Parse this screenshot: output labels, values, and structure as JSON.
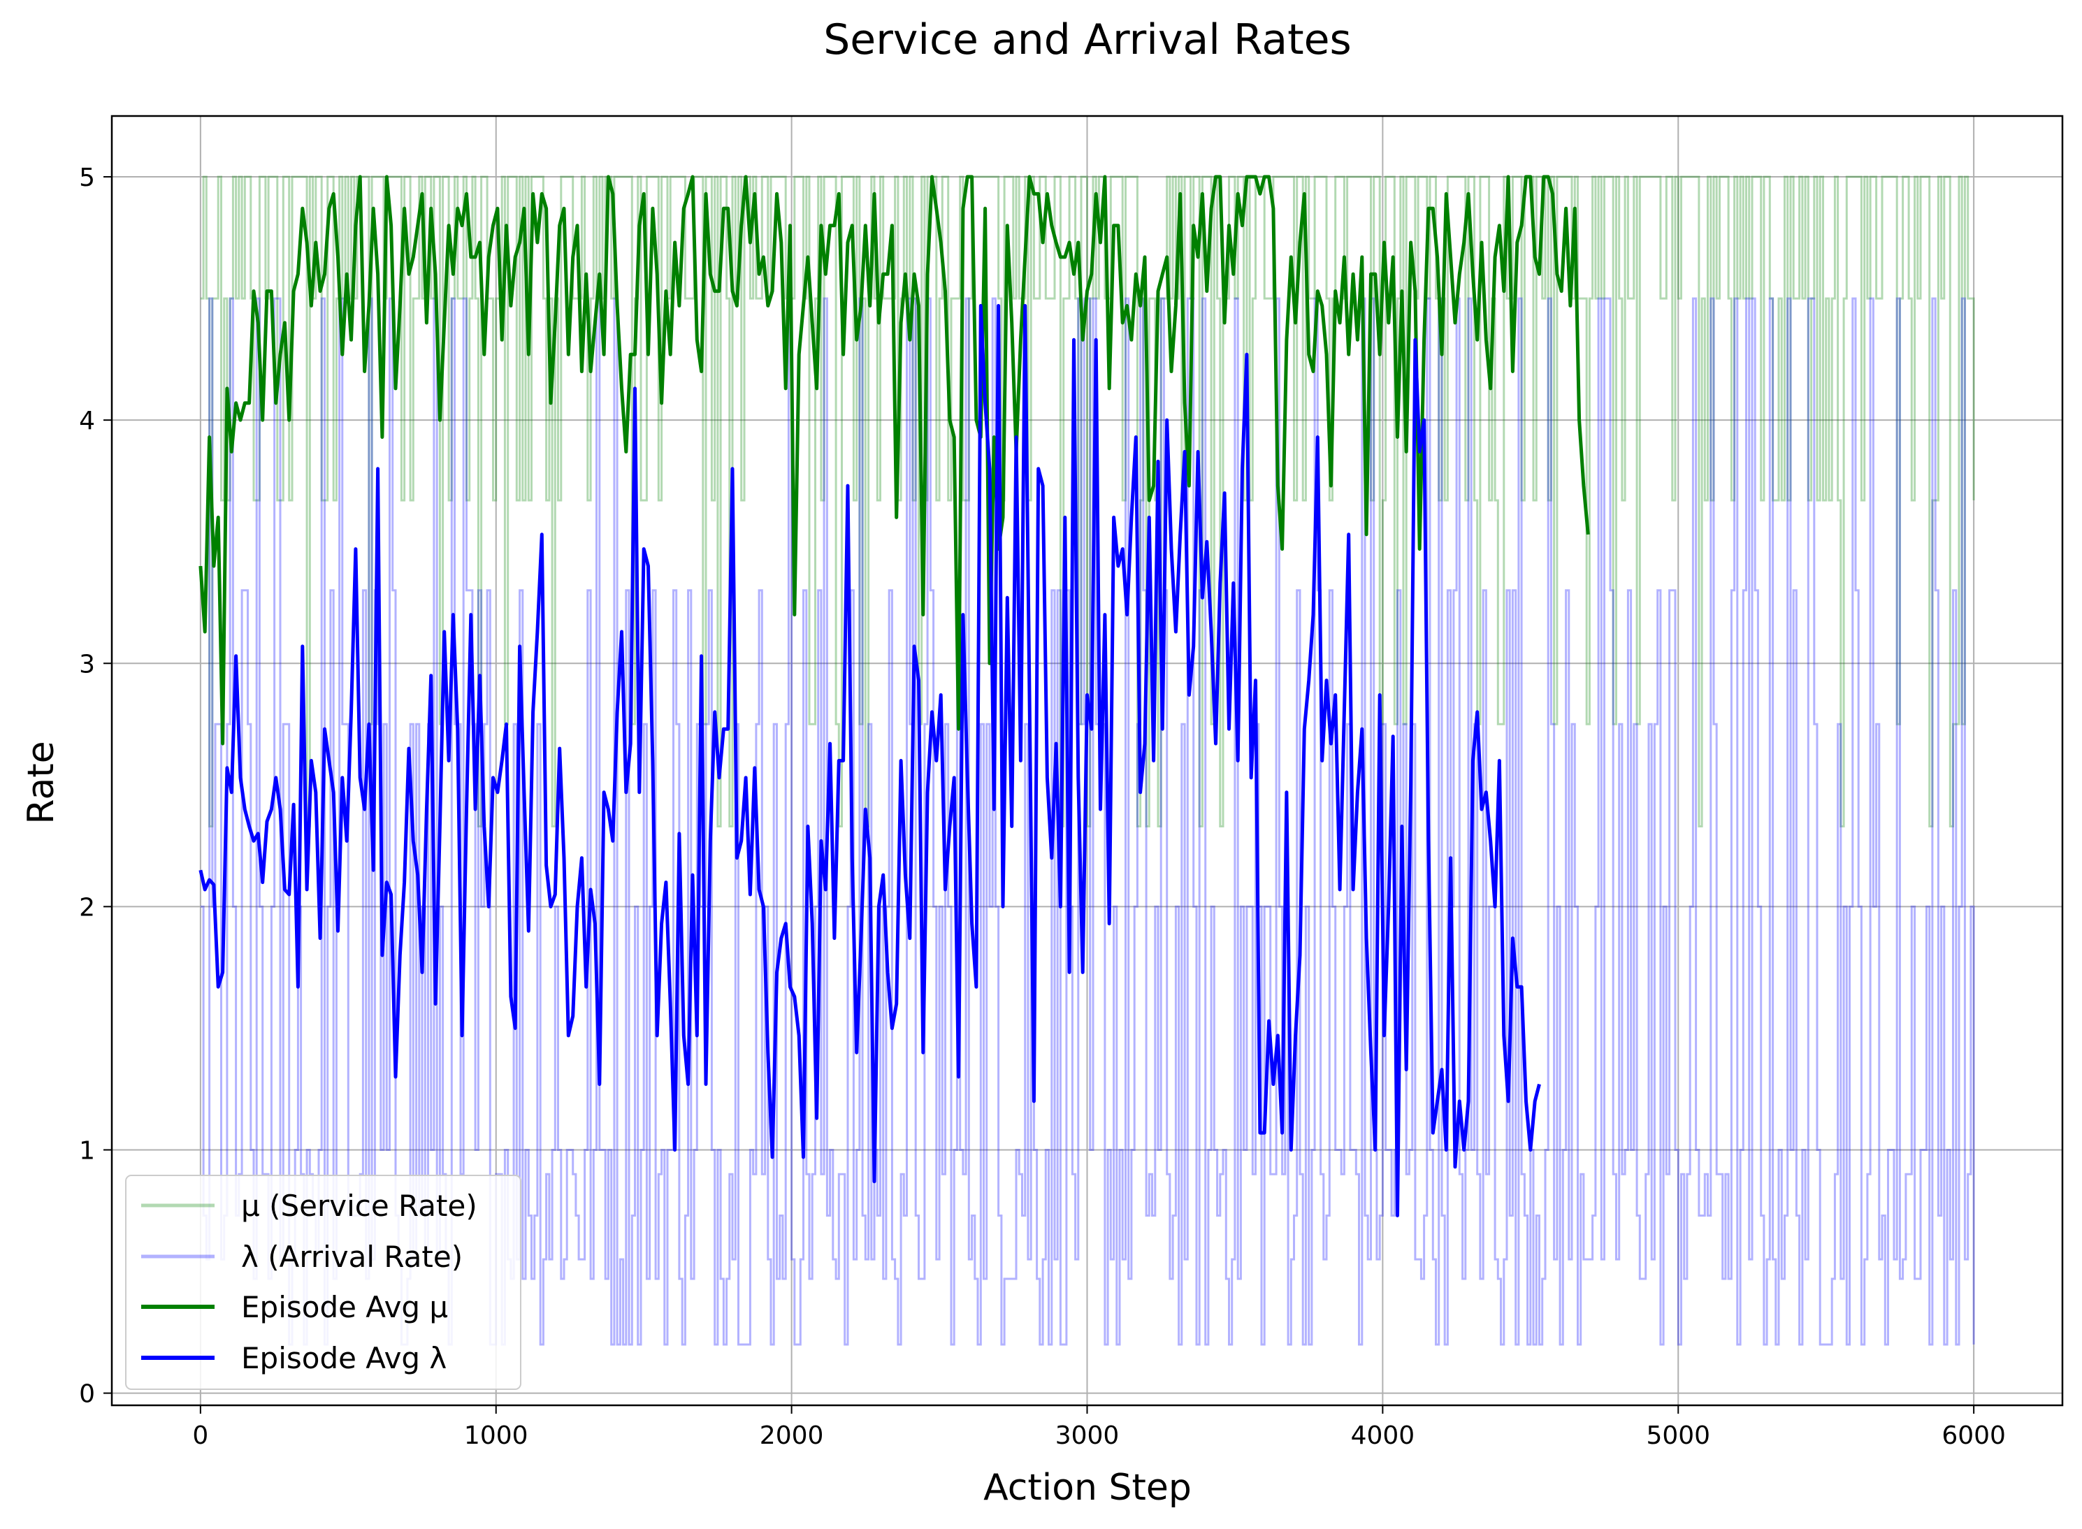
{
  "chart_data": {
    "type": "line",
    "title": "Service and Arrival Rates",
    "xlabel": "Action Step",
    "ylabel": "Rate",
    "xlim": [
      -300,
      6300
    ],
    "ylim": [
      -0.05,
      5.25
    ],
    "xticks": [
      0,
      1000,
      2000,
      3000,
      4000,
      5000,
      6000
    ],
    "yticks": [
      0,
      1,
      2,
      3,
      4,
      5
    ],
    "grid": true,
    "legend_position": "lower-left",
    "step_series": [
      {
        "name": "μ (Service Rate)",
        "color": "#008000",
        "alpha": 0.3,
        "levels": [
          2.33,
          2.75,
          3.67,
          4.5,
          5.0
        ],
        "range_x": [
          0,
          6000
        ]
      },
      {
        "name": "λ (Arrival Rate)",
        "color": "#0000ff",
        "alpha": 0.3,
        "levels": [
          0.2,
          0.47,
          0.55,
          0.73,
          0.9,
          1.0,
          2.0,
          2.75,
          3.3,
          4.5
        ],
        "range_x": [
          0,
          6000
        ]
      }
    ],
    "series": [
      {
        "name": "Episode Avg μ",
        "color": "#008000",
        "x_start": 0,
        "x_step": 15,
        "values": [
          3.4,
          3.13,
          3.93,
          3.4,
          3.6,
          2.67,
          4.13,
          3.87,
          4.07,
          4.0,
          4.07,
          4.07,
          4.53,
          4.4,
          4.0,
          4.53,
          4.53,
          4.07,
          4.27,
          4.4,
          4.0,
          4.53,
          4.6,
          4.87,
          4.73,
          4.47,
          4.73,
          4.53,
          4.6,
          4.87,
          4.93,
          4.67,
          4.27,
          4.6,
          4.33,
          4.8,
          5.0,
          4.2,
          4.47,
          4.87,
          4.6,
          3.93,
          5.0,
          4.8,
          4.13,
          4.47,
          4.87,
          4.6,
          4.67,
          4.8,
          4.93,
          4.4,
          4.87,
          4.6,
          4.0,
          4.4,
          4.8,
          4.6,
          4.87,
          4.8,
          4.93,
          4.67,
          4.67,
          4.73,
          4.27,
          4.67,
          4.8,
          4.87,
          4.33,
          4.8,
          4.47,
          4.67,
          4.73,
          4.87,
          4.27,
          4.93,
          4.73,
          4.93,
          4.87,
          4.07,
          4.4,
          4.8,
          4.87,
          4.27,
          4.67,
          4.8,
          4.2,
          4.6,
          4.2,
          4.4,
          4.6,
          4.27,
          5.0,
          4.93,
          4.47,
          4.13,
          3.87,
          4.27,
          4.27,
          4.8,
          4.93,
          4.27,
          4.87,
          4.6,
          4.07,
          4.53,
          4.27,
          4.73,
          4.47,
          4.87,
          4.93,
          5.0,
          4.33,
          4.2,
          4.93,
          4.6,
          4.53,
          4.53,
          4.87,
          4.87,
          4.53,
          4.47,
          4.8,
          5.0,
          4.73,
          4.93,
          4.6,
          4.67,
          4.47,
          4.53,
          4.93,
          4.73,
          4.13,
          4.8,
          3.2,
          4.27,
          4.47,
          4.67,
          4.4,
          4.13,
          4.8,
          4.6,
          4.8,
          4.8,
          4.93,
          4.27,
          4.73,
          4.8,
          4.33,
          4.47,
          4.8,
          4.47,
          4.93,
          4.4,
          4.6,
          4.6,
          4.8,
          3.6,
          4.4,
          4.6,
          4.33,
          4.6,
          4.47,
          3.2,
          4.6,
          5.0,
          4.87,
          4.73,
          4.53,
          4.0,
          3.93,
          2.73,
          4.87,
          5.0,
          5.0,
          4.0,
          3.93,
          4.87,
          3.0,
          3.93,
          3.47,
          3.6,
          4.8,
          4.4,
          3.87,
          4.33,
          4.67,
          5.0,
          4.93,
          4.93,
          4.73,
          4.93,
          4.8,
          4.73,
          4.67,
          4.67,
          4.73,
          4.6,
          4.73,
          4.33,
          4.53,
          4.6,
          4.93,
          4.73,
          5.0,
          4.13,
          4.8,
          4.8,
          4.4,
          4.47,
          4.33,
          4.6,
          4.47,
          4.67,
          3.67,
          3.73,
          4.53,
          4.6,
          4.67,
          4.2,
          4.47,
          4.93,
          4.07,
          3.73,
          4.8,
          4.67,
          4.93,
          4.53,
          4.87,
          5.0,
          5.0,
          4.4,
          4.8,
          4.6,
          4.93,
          4.8,
          5.0,
          5.0,
          5.0,
          4.93,
          5.0,
          5.0,
          4.87,
          3.73,
          3.47,
          4.33,
          4.67,
          4.4,
          4.73,
          4.93,
          4.27,
          4.2,
          4.53,
          4.47,
          4.27,
          3.73,
          4.53,
          4.4,
          4.67,
          4.27,
          4.6,
          4.33,
          4.67,
          3.53,
          4.6,
          4.6,
          4.27,
          4.73,
          4.4,
          4.67,
          3.93,
          4.53,
          3.87,
          4.73,
          4.53,
          3.47,
          4.33,
          4.87,
          4.87,
          4.67,
          4.27,
          4.93,
          4.67,
          4.4,
          4.6,
          4.73,
          4.93,
          4.6,
          4.33,
          4.73,
          4.33,
          4.13,
          4.67,
          4.8,
          4.53,
          5.0,
          4.2,
          4.73,
          4.8,
          5.0,
          5.0,
          4.67,
          4.6,
          5.0,
          5.0,
          4.93,
          4.6,
          4.53,
          4.87,
          4.47,
          4.87,
          4.0,
          3.73,
          3.53
        ]
      },
      {
        "name": "Episode Avg λ",
        "color": "#0000ff",
        "x_start": 0,
        "x_step": 15,
        "values": [
          2.15,
          2.07,
          2.11,
          2.09,
          1.67,
          1.73,
          2.57,
          2.47,
          3.03,
          2.53,
          2.4,
          2.33,
          2.27,
          2.3,
          2.1,
          2.35,
          2.4,
          2.53,
          2.4,
          2.07,
          2.05,
          2.42,
          1.67,
          3.07,
          2.07,
          2.6,
          2.47,
          1.87,
          2.73,
          2.6,
          2.47,
          1.9,
          2.53,
          2.27,
          2.8,
          3.47,
          2.53,
          2.4,
          2.75,
          2.15,
          3.8,
          1.8,
          2.1,
          2.05,
          1.3,
          1.8,
          2.1,
          2.65,
          2.27,
          2.13,
          1.73,
          2.4,
          2.95,
          1.6,
          2.33,
          3.13,
          2.6,
          3.2,
          2.73,
          1.47,
          2.4,
          3.2,
          2.4,
          2.95,
          2.33,
          2.0,
          2.53,
          2.47,
          2.6,
          2.75,
          1.63,
          1.5,
          3.07,
          2.47,
          1.9,
          2.8,
          3.13,
          3.53,
          2.17,
          2.0,
          2.05,
          2.65,
          2.2,
          1.47,
          1.55,
          2.0,
          2.2,
          1.67,
          2.07,
          1.93,
          1.27,
          2.47,
          2.4,
          2.27,
          2.8,
          3.13,
          2.47,
          2.67,
          4.13,
          2.47,
          3.47,
          3.4,
          2.6,
          1.47,
          1.93,
          2.1,
          1.6,
          1.0,
          2.3,
          1.47,
          1.27,
          2.13,
          1.47,
          3.03,
          1.27,
          2.27,
          2.8,
          2.53,
          2.73,
          2.73,
          3.8,
          2.2,
          2.27,
          2.53,
          2.05,
          2.57,
          2.07,
          2.0,
          1.4,
          0.97,
          1.73,
          1.87,
          1.93,
          1.67,
          1.63,
          1.47,
          0.97,
          2.33,
          1.93,
          1.13,
          2.27,
          2.07,
          2.67,
          1.87,
          2.6,
          2.6,
          3.73,
          2.2,
          1.4,
          1.87,
          2.4,
          2.2,
          0.87,
          2.0,
          2.13,
          1.73,
          1.5,
          1.6,
          2.6,
          2.13,
          1.87,
          3.07,
          2.93,
          1.4,
          2.47,
          2.8,
          2.6,
          2.87,
          2.07,
          2.33,
          2.53,
          1.3,
          3.2,
          2.53,
          1.93,
          1.67,
          4.47,
          4.07,
          3.8,
          2.4,
          4.47,
          2.0,
          3.27,
          2.33,
          3.93,
          2.6,
          4.47,
          2.87,
          1.2,
          3.8,
          3.73,
          2.53,
          2.2,
          2.67,
          2.0,
          3.6,
          1.73,
          4.33,
          2.53,
          1.73,
          2.87,
          2.73,
          4.33,
          2.4,
          3.2,
          1.93,
          3.6,
          3.4,
          3.47,
          3.2,
          3.6,
          3.93,
          2.47,
          2.67,
          3.6,
          2.6,
          3.83,
          2.73,
          4.0,
          3.47,
          3.13,
          3.53,
          3.87,
          2.87,
          3.07,
          3.87,
          3.27,
          3.5,
          3.13,
          2.67,
          3.33,
          3.7,
          2.73,
          3.33,
          2.6,
          3.8,
          4.27,
          2.53,
          2.93,
          1.07,
          1.07,
          1.53,
          1.27,
          1.47,
          1.07,
          2.47,
          1.0,
          1.47,
          1.8,
          2.73,
          2.93,
          3.2,
          3.93,
          2.6,
          2.93,
          2.67,
          2.87,
          2.07,
          2.8,
          3.53,
          2.07,
          2.47,
          2.73,
          1.87,
          1.4,
          1.0,
          2.87,
          1.47,
          2.0,
          2.7,
          0.73,
          2.33,
          1.33,
          2.5,
          4.33,
          3.87,
          4.0,
          2.27,
          1.07,
          1.2,
          1.33,
          1.0,
          2.2,
          0.93,
          1.2,
          1.0,
          1.2,
          2.6,
          2.8,
          2.4,
          2.47,
          2.27,
          2.0,
          2.6,
          1.47,
          1.2,
          1.87,
          1.67,
          1.67,
          1.2,
          1.0,
          1.2,
          1.27
        ]
      }
    ],
    "legend": [
      {
        "label": "μ (Service Rate)",
        "color": "#008000",
        "alpha": 0.3
      },
      {
        "label": "λ (Arrival Rate)",
        "color": "#0000ff",
        "alpha": 0.3
      },
      {
        "label": "Episode Avg μ",
        "color": "#008000",
        "alpha": 1.0
      },
      {
        "label": "Episode Avg λ",
        "color": "#0000ff",
        "alpha": 1.0
      }
    ]
  }
}
